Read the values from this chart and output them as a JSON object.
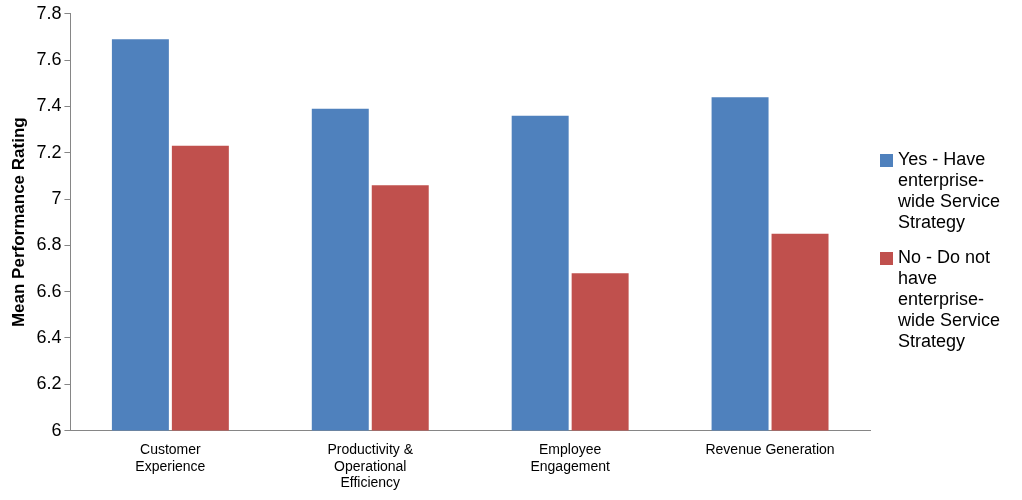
{
  "chart_data": {
    "type": "bar",
    "ylabel": "Mean Performance Rating",
    "categories": [
      "Customer Experience",
      "Productivity & Operational Efficiency",
      "Employee Engagement",
      "Revenue Generation"
    ],
    "series": [
      {
        "name": "Yes - Have enterprise-wide Service Strategy",
        "color": "#4f81bd",
        "values": [
          7.69,
          7.39,
          7.36,
          7.44
        ]
      },
      {
        "name": "No - Do not have enterprise-wide Service Strategy",
        "color": "#c0504d",
        "values": [
          7.23,
          7.06,
          6.68,
          6.85
        ]
      }
    ],
    "ylim": [
      6,
      7.8
    ],
    "yticks": [
      6,
      6.2,
      6.4,
      6.6,
      6.8,
      7,
      7.2,
      7.4,
      7.6,
      7.8
    ],
    "grid": false,
    "legend": "right"
  }
}
